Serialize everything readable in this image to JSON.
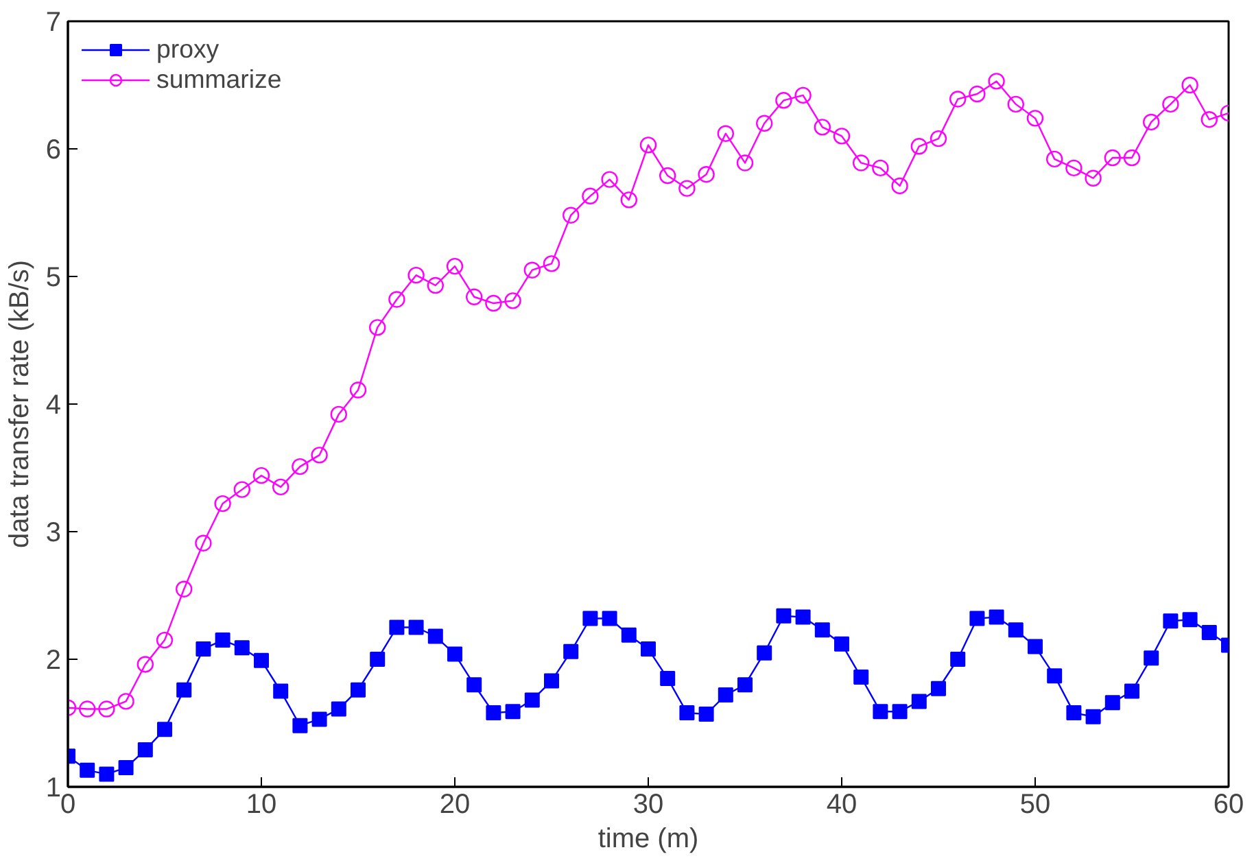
{
  "chart_data": {
    "type": "line",
    "xlabel": "time (m)",
    "ylabel": "data transfer rate (kB/s)",
    "x": [
      0,
      1,
      2,
      3,
      4,
      5,
      6,
      7,
      8,
      9,
      10,
      11,
      12,
      13,
      14,
      15,
      16,
      17,
      18,
      19,
      20,
      21,
      22,
      23,
      24,
      25,
      26,
      27,
      28,
      29,
      30,
      31,
      32,
      33,
      34,
      35,
      36,
      37,
      38,
      39,
      40,
      41,
      42,
      43,
      44,
      45,
      46,
      47,
      48,
      49,
      50,
      51,
      52,
      53,
      54,
      55,
      56,
      57,
      58,
      59,
      60
    ],
    "xlim": [
      0,
      60
    ],
    "xticks": [
      0,
      10,
      20,
      30,
      40,
      50,
      60
    ],
    "ylim": [
      1,
      7
    ],
    "yticks": [
      1,
      2,
      3,
      4,
      5,
      6,
      7
    ],
    "grid": false,
    "legend": "top left",
    "line_style": "solid",
    "series": [
      {
        "name": "proxy",
        "color": "#0000ff",
        "marker": "square",
        "values": [
          1.24,
          1.13,
          1.1,
          1.15,
          1.29,
          1.45,
          1.76,
          2.08,
          2.15,
          2.09,
          1.99,
          1.75,
          1.48,
          1.53,
          1.61,
          1.76,
          2.0,
          2.25,
          2.25,
          2.18,
          2.04,
          1.8,
          1.58,
          1.59,
          1.68,
          1.83,
          2.06,
          2.32,
          2.32,
          2.19,
          2.08,
          1.85,
          1.58,
          1.57,
          1.72,
          1.8,
          2.05,
          2.34,
          2.33,
          2.23,
          2.12,
          1.86,
          1.59,
          1.59,
          1.67,
          1.77,
          2.0,
          2.32,
          2.33,
          2.23,
          2.1,
          1.87,
          1.58,
          1.55,
          1.66,
          1.75,
          2.01,
          2.3,
          2.31,
          2.21,
          2.11
        ]
      },
      {
        "name": "summarize",
        "color": "#ff00ff",
        "marker": "circle",
        "values": [
          1.62,
          1.61,
          1.61,
          1.67,
          1.96,
          2.15,
          2.55,
          2.91,
          3.22,
          3.33,
          3.44,
          3.35,
          3.51,
          3.6,
          3.92,
          4.11,
          4.6,
          4.82,
          5.01,
          4.93,
          5.08,
          4.84,
          4.79,
          4.81,
          5.05,
          5.1,
          5.48,
          5.63,
          5.76,
          5.6,
          6.03,
          5.79,
          5.69,
          5.8,
          6.12,
          5.89,
          6.2,
          6.38,
          6.42,
          6.17,
          6.1,
          5.89,
          5.85,
          5.71,
          6.02,
          6.08,
          6.39,
          6.43,
          6.53,
          6.35,
          6.24,
          5.92,
          5.85,
          5.77,
          5.93,
          5.93,
          6.21,
          6.35,
          6.5,
          6.23,
          6.28
        ]
      }
    ]
  }
}
